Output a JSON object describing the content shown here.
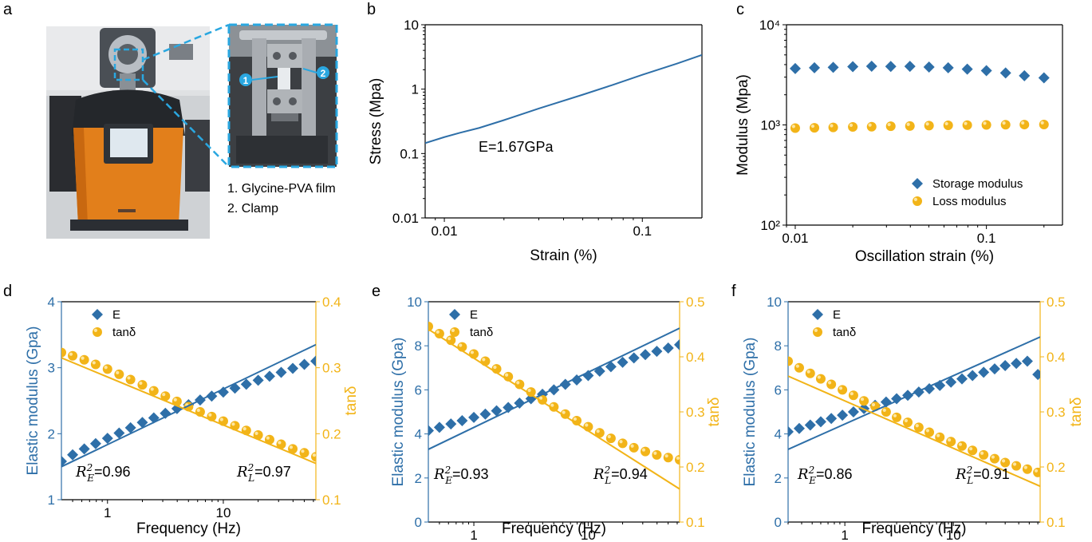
{
  "colors": {
    "blue": "#2e6fa8",
    "yellow": "#f2b418",
    "axis": "#000000"
  },
  "panel_a": {
    "letter": "a",
    "caption_1": "1. Glycine-PVA film",
    "caption_2": "2. Clamp",
    "marker_1": "1",
    "marker_2": "2"
  },
  "chart_data": [
    {
      "id": "b",
      "letter": "b",
      "type": "line",
      "xlabel": "Strain (%)",
      "ylabel": "Stress (Mpa)",
      "xscale": "log",
      "yscale": "log",
      "xlim": [
        0.008,
        0.2
      ],
      "ylim": [
        0.01,
        10
      ],
      "xticks": [
        0.01,
        0.1
      ],
      "xtick_labels": [
        "0.01",
        "0.1"
      ],
      "yticks": [
        0.01,
        0.1,
        1,
        10
      ],
      "ytick_labels": [
        "0.01",
        "0.1",
        "1",
        "10"
      ],
      "annotation": "E=1.67GPa",
      "series": [
        {
          "color": "#2e6fa8",
          "x": [
            0.008,
            0.01,
            0.012,
            0.015,
            0.02,
            0.03,
            0.05,
            0.07,
            0.1,
            0.15,
            0.2
          ],
          "y": [
            0.145,
            0.18,
            0.21,
            0.25,
            0.33,
            0.5,
            0.82,
            1.15,
            1.67,
            2.5,
            3.4
          ]
        }
      ]
    },
    {
      "id": "c",
      "letter": "c",
      "type": "scatter",
      "xlabel": "Oscillation strain (%)",
      "ylabel": "Modulus (Mpa)",
      "xscale": "log",
      "yscale": "log",
      "xlim": [
        0.009,
        0.25
      ],
      "ylim": [
        100,
        10000
      ],
      "xticks": [
        0.01,
        0.1
      ],
      "xtick_labels": [
        "0.01",
        "0.1"
      ],
      "yticks": [
        100,
        1000,
        10000
      ],
      "ytick_labels": [
        "10²",
        "10³",
        "10⁴"
      ],
      "legend_position": "bottom-right",
      "series": [
        {
          "name": "Storage modulus",
          "marker": "diamond",
          "color": "#2e6fa8",
          "x": [
            0.01,
            0.0126,
            0.0158,
            0.02,
            0.0251,
            0.0316,
            0.0398,
            0.0501,
            0.0631,
            0.0794,
            0.1,
            0.126,
            0.158,
            0.2
          ],
          "y": [
            3650,
            3720,
            3760,
            3820,
            3850,
            3830,
            3840,
            3780,
            3720,
            3600,
            3480,
            3300,
            3100,
            2950
          ]
        },
        {
          "name": "Loss modulus",
          "marker": "circle",
          "color": "#f2b418",
          "x": [
            0.01,
            0.0126,
            0.0158,
            0.02,
            0.0251,
            0.0316,
            0.0398,
            0.0501,
            0.0631,
            0.0794,
            0.1,
            0.126,
            0.158,
            0.2
          ],
          "y": [
            930,
            935,
            945,
            955,
            960,
            970,
            975,
            985,
            990,
            995,
            1000,
            1005,
            1008,
            1010
          ]
        }
      ]
    },
    {
      "id": "d",
      "letter": "d",
      "type": "scatter",
      "xlabel": "Frequency (Hz)",
      "ylabel": "Elastic modulus (Gpa)",
      "ylabel_right": "tanδ",
      "xscale": "log",
      "xlim": [
        0.4,
        63
      ],
      "xticks": [
        1,
        10
      ],
      "xtick_labels": [
        "1",
        "10"
      ],
      "ylim": [
        1,
        4
      ],
      "yticks": [
        1,
        2,
        3,
        4
      ],
      "ytick_labels": [
        "1",
        "2",
        "3",
        "4"
      ],
      "ylim_right": [
        0.1,
        0.4
      ],
      "yticks_right": [
        0.1,
        0.2,
        0.3,
        0.4
      ],
      "ytick_labels_right": [
        "0.1",
        "0.2",
        "0.3",
        "0.4"
      ],
      "r2_left": "=0.96",
      "r2_right": "=0.97",
      "series": [
        {
          "name": "E",
          "marker": "diamond",
          "color": "#2e6fa8",
          "axis": "left",
          "x": [
            0.4,
            0.5,
            0.63,
            0.79,
            1,
            1.26,
            1.58,
            2,
            2.51,
            3.16,
            3.98,
            5.01,
            6.31,
            7.94,
            10,
            12.6,
            15.8,
            20,
            25.1,
            31.6,
            39.8,
            50.1,
            63
          ],
          "y": [
            1.58,
            1.68,
            1.77,
            1.85,
            1.93,
            2.01,
            2.09,
            2.17,
            2.24,
            2.31,
            2.38,
            2.44,
            2.51,
            2.57,
            2.63,
            2.69,
            2.75,
            2.81,
            2.87,
            2.93,
            2.99,
            3.05,
            3.1
          ]
        },
        {
          "name": "tanδ",
          "marker": "circle",
          "color": "#f2b418",
          "axis": "right",
          "x": [
            0.4,
            0.5,
            0.63,
            0.79,
            1,
            1.26,
            1.58,
            2,
            2.51,
            3.16,
            3.98,
            5.01,
            6.31,
            7.94,
            10,
            12.6,
            15.8,
            20,
            25.1,
            31.6,
            39.8,
            50.1,
            63
          ],
          "y": [
            0.323,
            0.318,
            0.312,
            0.305,
            0.298,
            0.29,
            0.282,
            0.274,
            0.265,
            0.257,
            0.249,
            0.241,
            0.233,
            0.226,
            0.219,
            0.212,
            0.205,
            0.198,
            0.191,
            0.184,
            0.177,
            0.171,
            0.165
          ]
        },
        {
          "name": "E fit",
          "line": true,
          "color": "#2e6fa8",
          "axis": "left",
          "x": [
            0.4,
            63
          ],
          "y": [
            1.5,
            3.35
          ]
        },
        {
          "name": "tanδ fit",
          "line": true,
          "color": "#f2b418",
          "axis": "right",
          "x": [
            0.4,
            63
          ],
          "y": [
            0.315,
            0.155
          ]
        }
      ]
    },
    {
      "id": "e",
      "letter": "e",
      "type": "scatter",
      "xlabel": "Frequency (Hz)",
      "ylabel": "Elastic modulus (Gpa)",
      "ylabel_right": "tanδ",
      "xscale": "log",
      "xlim": [
        0.4,
        63
      ],
      "xticks": [
        1,
        10
      ],
      "xtick_labels": [
        "1",
        "10"
      ],
      "ylim": [
        0,
        10
      ],
      "yticks": [
        0,
        2,
        4,
        6,
        8,
        10
      ],
      "ytick_labels": [
        "0",
        "2",
        "4",
        "6",
        "8",
        "10"
      ],
      "ylim_right": [
        0.1,
        0.5
      ],
      "yticks_right": [
        0.1,
        0.2,
        0.3,
        0.4,
        0.5
      ],
      "ytick_labels_right": [
        "0.1",
        "0.2",
        "0.3",
        "0.4",
        "0.5"
      ],
      "r2_left": "=0.93",
      "r2_right": "=0.94",
      "series": [
        {
          "name": "E",
          "marker": "diamond",
          "color": "#2e6fa8",
          "axis": "left",
          "x": [
            0.4,
            0.5,
            0.63,
            0.79,
            1,
            1.26,
            1.58,
            2,
            2.51,
            3.16,
            3.98,
            5.01,
            6.31,
            7.94,
            10,
            12.6,
            15.8,
            20,
            25.1,
            31.6,
            39.8,
            50.1,
            63
          ],
          "y": [
            4.15,
            4.3,
            4.45,
            4.6,
            4.75,
            4.9,
            5.05,
            5.2,
            5.4,
            5.6,
            5.8,
            6.0,
            6.25,
            6.45,
            6.65,
            6.85,
            7.05,
            7.25,
            7.45,
            7.6,
            7.75,
            7.9,
            8.05
          ]
        },
        {
          "name": "tanδ",
          "marker": "circle",
          "color": "#f2b418",
          "axis": "right",
          "x": [
            0.4,
            0.5,
            0.63,
            0.79,
            1,
            1.26,
            1.58,
            2,
            2.51,
            3.16,
            3.98,
            5.01,
            6.31,
            7.94,
            10,
            12.6,
            15.8,
            20,
            25.1,
            31.6,
            39.8,
            50.1,
            63
          ],
          "y": [
            0.455,
            0.442,
            0.43,
            0.418,
            0.405,
            0.392,
            0.378,
            0.364,
            0.35,
            0.336,
            0.322,
            0.309,
            0.296,
            0.284,
            0.273,
            0.262,
            0.252,
            0.243,
            0.235,
            0.228,
            0.222,
            0.217,
            0.213
          ]
        },
        {
          "name": "E fit",
          "line": true,
          "color": "#2e6fa8",
          "axis": "left",
          "x": [
            0.4,
            63
          ],
          "y": [
            3.3,
            8.8
          ]
        },
        {
          "name": "tanδ fit",
          "line": true,
          "color": "#f2b418",
          "axis": "right",
          "x": [
            0.4,
            63
          ],
          "y": [
            0.45,
            0.16
          ]
        }
      ]
    },
    {
      "id": "f",
      "letter": "f",
      "type": "scatter",
      "xlabel": "Frequency (Hz)",
      "ylabel": "Elastic modulus (Gpa)",
      "ylabel_right": "tanδ",
      "xscale": "log",
      "xlim": [
        0.3,
        63
      ],
      "xticks": [
        1,
        10
      ],
      "xtick_labels": [
        "1",
        "10"
      ],
      "ylim": [
        0,
        10
      ],
      "yticks": [
        0,
        2,
        4,
        6,
        8,
        10
      ],
      "ytick_labels": [
        "0",
        "2",
        "4",
        "6",
        "8",
        "10"
      ],
      "ylim_right": [
        0.1,
        0.5
      ],
      "yticks_right": [
        0.1,
        0.2,
        0.3,
        0.4,
        0.5
      ],
      "ytick_labels_right": [
        "0.1",
        "0.2",
        "0.3",
        "0.4",
        "0.5"
      ],
      "r2_left": "=0.86",
      "r2_right": "=0.91",
      "series": [
        {
          "name": "E",
          "marker": "diamond",
          "color": "#2e6fa8",
          "axis": "left",
          "x": [
            0.3,
            0.38,
            0.48,
            0.6,
            0.75,
            0.95,
            1.2,
            1.5,
            1.9,
            2.4,
            3.0,
            3.8,
            4.8,
            6.0,
            7.5,
            9.5,
            12,
            15,
            19,
            24,
            30,
            38,
            48,
            60
          ],
          "y": [
            4.1,
            4.25,
            4.4,
            4.55,
            4.7,
            4.85,
            5.0,
            5.15,
            5.3,
            5.45,
            5.6,
            5.75,
            5.9,
            6.05,
            6.2,
            6.35,
            6.5,
            6.65,
            6.8,
            6.95,
            7.1,
            7.2,
            7.3,
            6.7
          ]
        },
        {
          "name": "tanδ",
          "marker": "circle",
          "color": "#f2b418",
          "axis": "right",
          "x": [
            0.3,
            0.38,
            0.48,
            0.6,
            0.75,
            0.95,
            1.2,
            1.5,
            1.9,
            2.4,
            3.0,
            3.8,
            4.8,
            6.0,
            7.5,
            9.5,
            12,
            15,
            19,
            24,
            30,
            38,
            48,
            60
          ],
          "y": [
            0.392,
            0.38,
            0.37,
            0.36,
            0.35,
            0.34,
            0.33,
            0.32,
            0.31,
            0.3,
            0.29,
            0.281,
            0.272,
            0.263,
            0.254,
            0.246,
            0.238,
            0.23,
            0.222,
            0.215,
            0.208,
            0.202,
            0.196,
            0.19
          ]
        },
        {
          "name": "E fit",
          "line": true,
          "color": "#2e6fa8",
          "axis": "left",
          "x": [
            0.3,
            63
          ],
          "y": [
            3.3,
            8.4
          ]
        },
        {
          "name": "tanδ fit",
          "line": true,
          "color": "#f2b418",
          "axis": "right",
          "x": [
            0.3,
            63
          ],
          "y": [
            0.365,
            0.165
          ]
        }
      ]
    }
  ]
}
